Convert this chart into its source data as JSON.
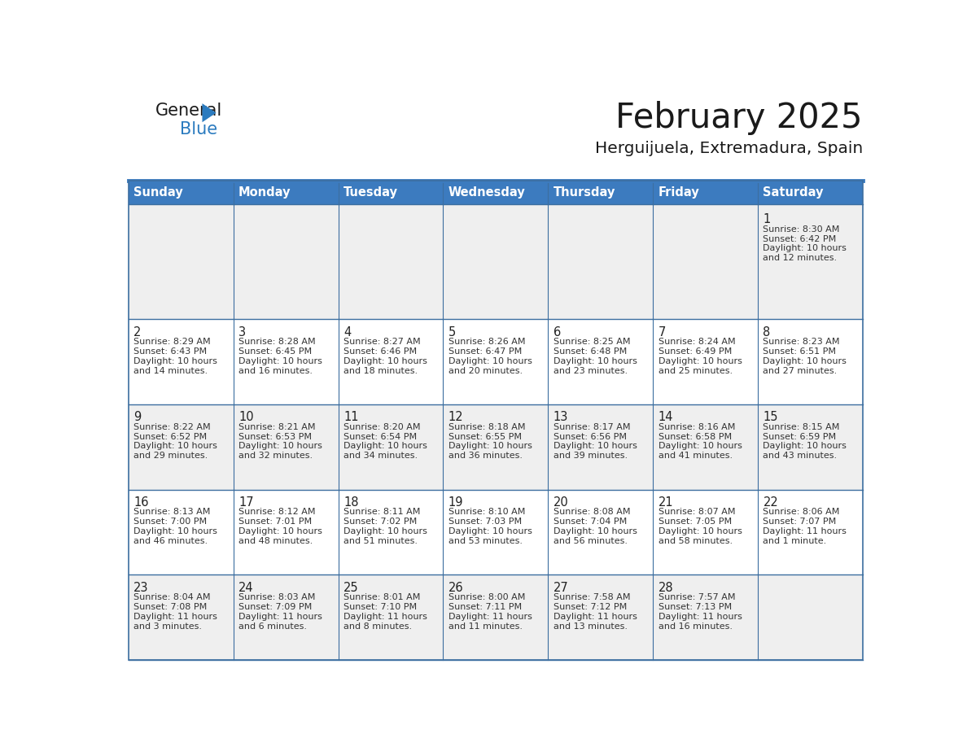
{
  "title": "February 2025",
  "subtitle": "Herguijuela, Extremadura, Spain",
  "days_of_week": [
    "Sunday",
    "Monday",
    "Tuesday",
    "Wednesday",
    "Thursday",
    "Friday",
    "Saturday"
  ],
  "header_bg": "#3c7bbf",
  "header_text": "#ffffff",
  "cell_bg_odd": "#efefef",
  "cell_bg_even": "#ffffff",
  "border_color": "#3c6ea0",
  "title_color": "#1a1a1a",
  "subtitle_color": "#1a1a1a",
  "day_number_color": "#222222",
  "cell_text_color": "#333333",
  "logo_general_color": "#1a1a1a",
  "logo_blue_color": "#2b7bbf",
  "weeks": [
    [
      {
        "day": null,
        "info": ""
      },
      {
        "day": null,
        "info": ""
      },
      {
        "day": null,
        "info": ""
      },
      {
        "day": null,
        "info": ""
      },
      {
        "day": null,
        "info": ""
      },
      {
        "day": null,
        "info": ""
      },
      {
        "day": 1,
        "info": "Sunrise: 8:30 AM\nSunset: 6:42 PM\nDaylight: 10 hours\nand 12 minutes."
      }
    ],
    [
      {
        "day": 2,
        "info": "Sunrise: 8:29 AM\nSunset: 6:43 PM\nDaylight: 10 hours\nand 14 minutes."
      },
      {
        "day": 3,
        "info": "Sunrise: 8:28 AM\nSunset: 6:45 PM\nDaylight: 10 hours\nand 16 minutes."
      },
      {
        "day": 4,
        "info": "Sunrise: 8:27 AM\nSunset: 6:46 PM\nDaylight: 10 hours\nand 18 minutes."
      },
      {
        "day": 5,
        "info": "Sunrise: 8:26 AM\nSunset: 6:47 PM\nDaylight: 10 hours\nand 20 minutes."
      },
      {
        "day": 6,
        "info": "Sunrise: 8:25 AM\nSunset: 6:48 PM\nDaylight: 10 hours\nand 23 minutes."
      },
      {
        "day": 7,
        "info": "Sunrise: 8:24 AM\nSunset: 6:49 PM\nDaylight: 10 hours\nand 25 minutes."
      },
      {
        "day": 8,
        "info": "Sunrise: 8:23 AM\nSunset: 6:51 PM\nDaylight: 10 hours\nand 27 minutes."
      }
    ],
    [
      {
        "day": 9,
        "info": "Sunrise: 8:22 AM\nSunset: 6:52 PM\nDaylight: 10 hours\nand 29 minutes."
      },
      {
        "day": 10,
        "info": "Sunrise: 8:21 AM\nSunset: 6:53 PM\nDaylight: 10 hours\nand 32 minutes."
      },
      {
        "day": 11,
        "info": "Sunrise: 8:20 AM\nSunset: 6:54 PM\nDaylight: 10 hours\nand 34 minutes."
      },
      {
        "day": 12,
        "info": "Sunrise: 8:18 AM\nSunset: 6:55 PM\nDaylight: 10 hours\nand 36 minutes."
      },
      {
        "day": 13,
        "info": "Sunrise: 8:17 AM\nSunset: 6:56 PM\nDaylight: 10 hours\nand 39 minutes."
      },
      {
        "day": 14,
        "info": "Sunrise: 8:16 AM\nSunset: 6:58 PM\nDaylight: 10 hours\nand 41 minutes."
      },
      {
        "day": 15,
        "info": "Sunrise: 8:15 AM\nSunset: 6:59 PM\nDaylight: 10 hours\nand 43 minutes."
      }
    ],
    [
      {
        "day": 16,
        "info": "Sunrise: 8:13 AM\nSunset: 7:00 PM\nDaylight: 10 hours\nand 46 minutes."
      },
      {
        "day": 17,
        "info": "Sunrise: 8:12 AM\nSunset: 7:01 PM\nDaylight: 10 hours\nand 48 minutes."
      },
      {
        "day": 18,
        "info": "Sunrise: 8:11 AM\nSunset: 7:02 PM\nDaylight: 10 hours\nand 51 minutes."
      },
      {
        "day": 19,
        "info": "Sunrise: 8:10 AM\nSunset: 7:03 PM\nDaylight: 10 hours\nand 53 minutes."
      },
      {
        "day": 20,
        "info": "Sunrise: 8:08 AM\nSunset: 7:04 PM\nDaylight: 10 hours\nand 56 minutes."
      },
      {
        "day": 21,
        "info": "Sunrise: 8:07 AM\nSunset: 7:05 PM\nDaylight: 10 hours\nand 58 minutes."
      },
      {
        "day": 22,
        "info": "Sunrise: 8:06 AM\nSunset: 7:07 PM\nDaylight: 11 hours\nand 1 minute."
      }
    ],
    [
      {
        "day": 23,
        "info": "Sunrise: 8:04 AM\nSunset: 7:08 PM\nDaylight: 11 hours\nand 3 minutes."
      },
      {
        "day": 24,
        "info": "Sunrise: 8:03 AM\nSunset: 7:09 PM\nDaylight: 11 hours\nand 6 minutes."
      },
      {
        "day": 25,
        "info": "Sunrise: 8:01 AM\nSunset: 7:10 PM\nDaylight: 11 hours\nand 8 minutes."
      },
      {
        "day": 26,
        "info": "Sunrise: 8:00 AM\nSunset: 7:11 PM\nDaylight: 11 hours\nand 11 minutes."
      },
      {
        "day": 27,
        "info": "Sunrise: 7:58 AM\nSunset: 7:12 PM\nDaylight: 11 hours\nand 13 minutes."
      },
      {
        "day": 28,
        "info": "Sunrise: 7:57 AM\nSunset: 7:13 PM\nDaylight: 11 hours\nand 16 minutes."
      },
      {
        "day": null,
        "info": ""
      }
    ]
  ]
}
